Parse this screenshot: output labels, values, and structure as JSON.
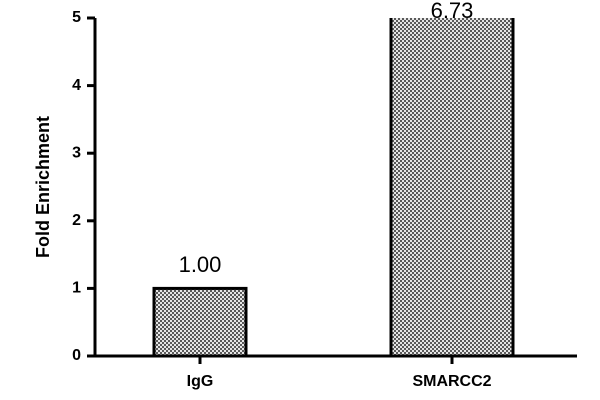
{
  "chart_data": {
    "type": "bar",
    "y_label": "Fold Enrichment",
    "categories": [
      "IgG",
      "SMARCC2"
    ],
    "values": [
      1.0,
      6.73
    ],
    "value_labels": [
      "1.00",
      "6.73"
    ],
    "color": "#9a9a9a",
    "ylim": [
      0,
      5
    ],
    "yticks": [
      0,
      1,
      2,
      3,
      4,
      5
    ]
  }
}
